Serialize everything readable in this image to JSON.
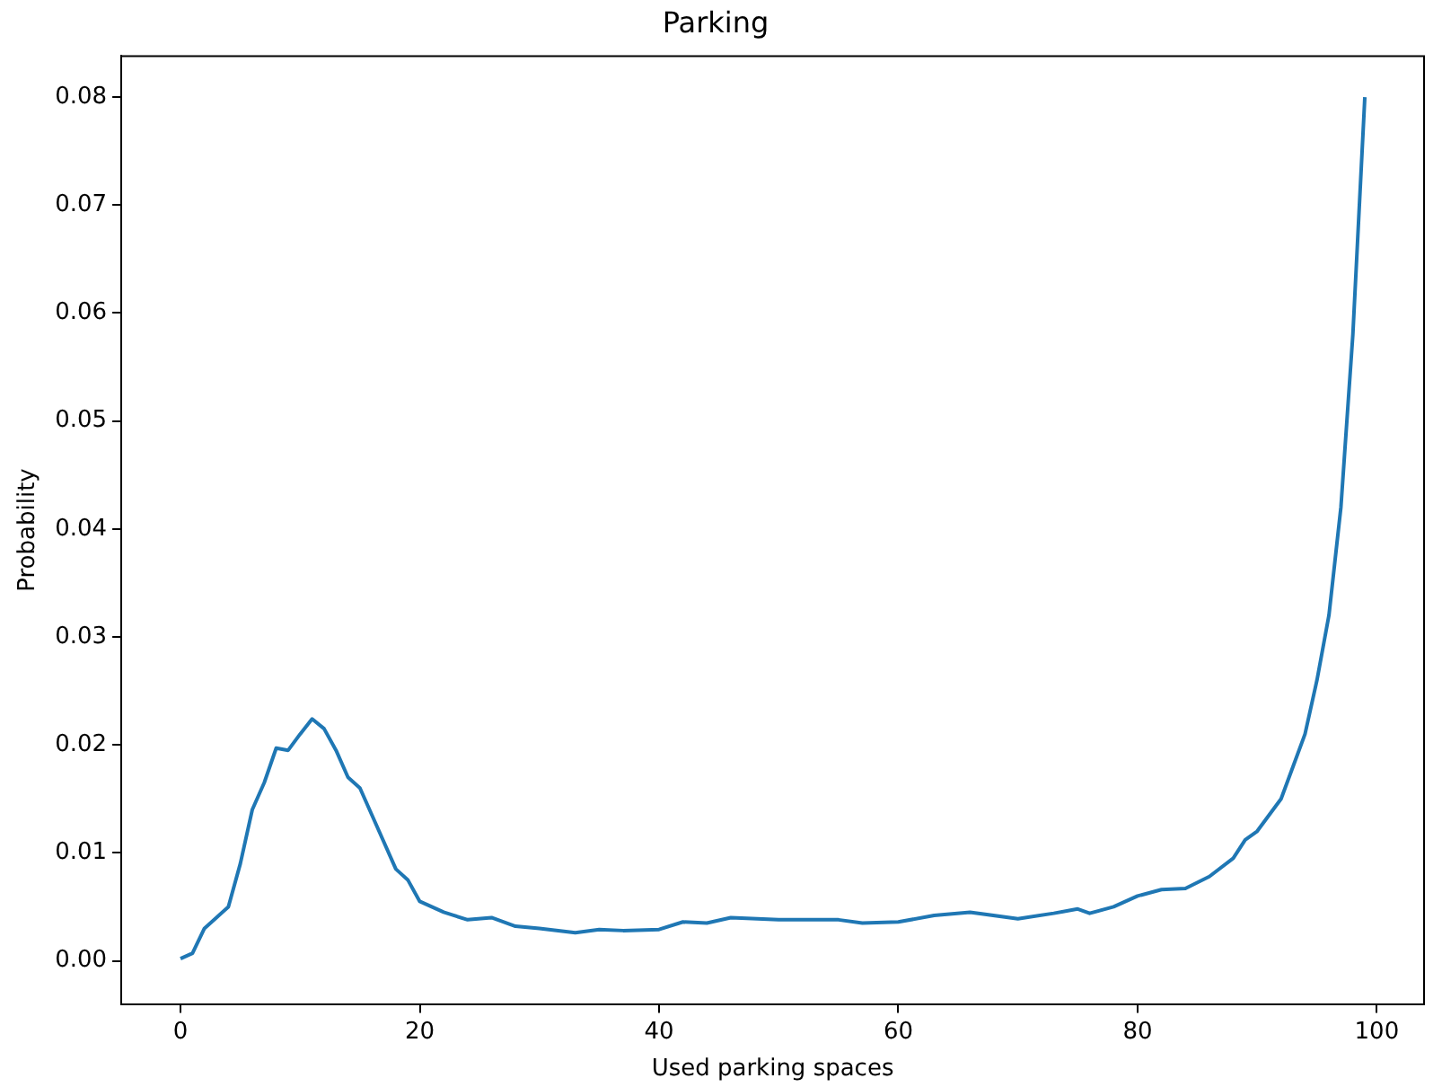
{
  "chart_data": {
    "type": "line",
    "title": "Parking",
    "xlabel": "Used parking spaces",
    "ylabel": "Probability",
    "xlim": [
      -4.95,
      103.95
    ],
    "xticks": [
      0,
      20,
      40,
      60,
      80,
      100
    ],
    "ylim": [
      -0.004,
      0.0838
    ],
    "yticks": [
      {
        "value": 0,
        "label": "0.00"
      },
      {
        "value": 0.01,
        "label": "0.01"
      },
      {
        "value": 0.02,
        "label": "0.02"
      },
      {
        "value": 0.03,
        "label": "0.03"
      },
      {
        "value": 0.04,
        "label": "0.04"
      },
      {
        "value": 0.05,
        "label": "0.05"
      },
      {
        "value": 0.06,
        "label": "0.06"
      },
      {
        "value": 0.07,
        "label": "0.07"
      },
      {
        "value": 0.08,
        "label": "0.08"
      }
    ],
    "grid": false,
    "legend": false,
    "marker": "none",
    "line_style": "solid",
    "x": [
      0,
      1,
      2,
      3,
      4,
      5,
      6,
      7,
      8,
      9,
      10,
      11,
      12,
      13,
      14,
      15,
      16,
      18,
      19,
      20,
      22,
      24,
      26,
      28,
      30,
      33,
      35,
      37,
      40,
      42,
      44,
      46,
      50,
      55,
      57,
      60,
      63,
      66,
      70,
      73,
      75,
      76,
      78,
      80,
      82,
      84,
      86,
      88,
      89,
      90,
      91,
      92,
      93,
      94,
      95,
      96,
      97,
      98,
      99
    ],
    "series": [
      {
        "color": "#1f77b4",
        "values": [
          0.0002,
          0.0007,
          0.003,
          0.004,
          0.005,
          0.009,
          0.014,
          0.0165,
          0.0197,
          0.0195,
          0.021,
          0.0224,
          0.0215,
          0.0195,
          0.017,
          0.016,
          0.0135,
          0.0085,
          0.0075,
          0.0055,
          0.0045,
          0.0038,
          0.004,
          0.0032,
          0.003,
          0.0026,
          0.0029,
          0.0028,
          0.0029,
          0.0036,
          0.0035,
          0.004,
          0.0038,
          0.0038,
          0.0035,
          0.0036,
          0.0042,
          0.0045,
          0.0039,
          0.0044,
          0.0048,
          0.0044,
          0.005,
          0.006,
          0.0066,
          0.0067,
          0.0078,
          0.0095,
          0.0112,
          0.012,
          0.0135,
          0.015,
          0.018,
          0.021,
          0.026,
          0.032,
          0.042,
          0.058,
          0.08
        ]
      }
    ]
  }
}
